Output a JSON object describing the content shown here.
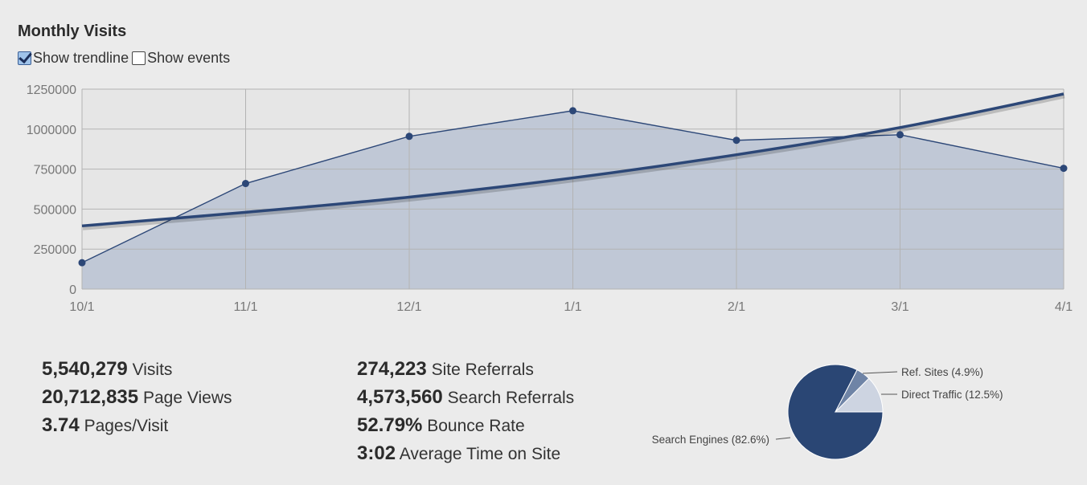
{
  "header": {
    "title": "Monthly Visits",
    "show_trendline_label": "Show trendline",
    "show_events_label": "Show events",
    "show_trendline_checked": true,
    "show_events_checked": false
  },
  "colors": {
    "series": "#2c4777",
    "area_fill": "#b9c2d2",
    "grid": "#b3b3b3",
    "pie_search": "#2a4674",
    "pie_ref": "#6f84a6",
    "pie_direct": "#cdd4e1"
  },
  "chart_data": [
    {
      "type": "area",
      "title": "Monthly Visits",
      "categories": [
        "10/1",
        "11/1",
        "12/1",
        "1/1",
        "2/1",
        "3/1",
        "4/1"
      ],
      "series": [
        {
          "values": [
            165000,
            660000,
            955000,
            1115000,
            930000,
            965000,
            755000
          ]
        }
      ],
      "trendline": [
        395000,
        480000,
        575000,
        695000,
        840000,
        1010000,
        1220000
      ],
      "yticks": [
        0,
        250000,
        500000,
        750000,
        1000000,
        1250000
      ],
      "ylim": [
        0,
        1250000
      ],
      "grid": true,
      "xlabel": "",
      "ylabel": ""
    },
    {
      "type": "pie",
      "slices": [
        {
          "label": "Search Engines (82.6%)",
          "value": 82.6
        },
        {
          "label": "Ref. Sites (4.9%)",
          "value": 4.9
        },
        {
          "label": "Direct Traffic (12.5%)",
          "value": 12.5
        }
      ]
    }
  ],
  "stats_left": [
    {
      "value": "5,540,279",
      "label": "Visits"
    },
    {
      "value": "20,712,835",
      "label": "Page Views"
    },
    {
      "value": "3.74",
      "label": "Pages/Visit"
    }
  ],
  "stats_right": [
    {
      "value": "274,223",
      "label": "Site Referrals"
    },
    {
      "value": "4,573,560",
      "label": "Search Referrals"
    },
    {
      "value": "52.79%",
      "label": "Bounce Rate"
    },
    {
      "value": "3:02",
      "label": "Average Time on Site"
    }
  ]
}
